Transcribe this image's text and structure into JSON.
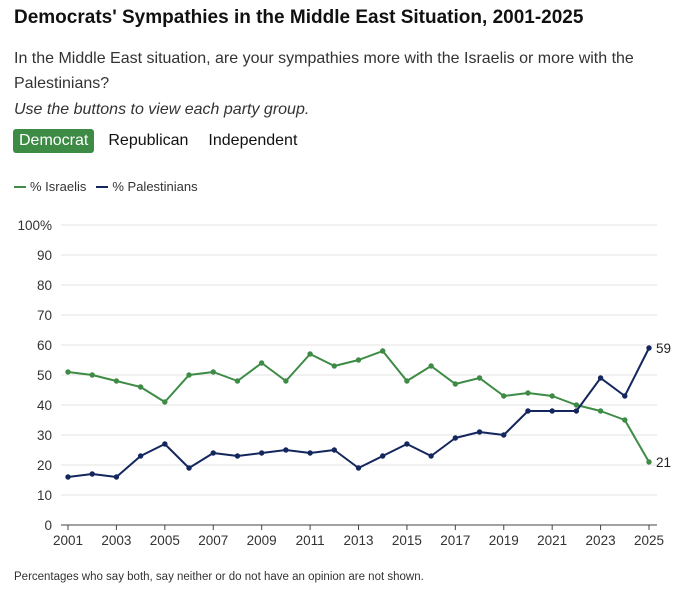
{
  "header": {
    "title": "Democrats' Sympathies in the Middle East Situation, 2001-2025",
    "subtitle": "In the Middle East situation, are your sympathies more with the Israelis or more with the Palestinians?",
    "instruction": "Use the buttons to view each party group."
  },
  "tabs": [
    {
      "label": "Democrat",
      "active": true
    },
    {
      "label": "Republican",
      "active": false
    },
    {
      "label": "Independent",
      "active": false
    }
  ],
  "legend": [
    {
      "label": "% Israelis",
      "color": "#3d8b45"
    },
    {
      "label": "% Palestinians",
      "color": "#14265e"
    }
  ],
  "footnote": "Percentages who say both, say neither or do not have an opinion are not shown.",
  "chart_data": {
    "type": "line",
    "x": [
      2001,
      2002,
      2003,
      2004,
      2005,
      2006,
      2007,
      2008,
      2009,
      2010,
      2011,
      2012,
      2013,
      2014,
      2015,
      2016,
      2017,
      2018,
      2019,
      2020,
      2021,
      2022,
      2023,
      2024,
      2025
    ],
    "x_ticks": [
      2001,
      2003,
      2005,
      2007,
      2009,
      2011,
      2013,
      2015,
      2017,
      2019,
      2021,
      2023,
      2025
    ],
    "y_ticks": [
      "0",
      "10",
      "20",
      "30",
      "40",
      "50",
      "60",
      "70",
      "80",
      "90",
      "100%"
    ],
    "ylim": [
      0,
      100
    ],
    "grid": true,
    "series": [
      {
        "name": "% Israelis",
        "color": "#3d8b45",
        "end_label": "21",
        "values": [
          51,
          50,
          48,
          46,
          41,
          50,
          51,
          48,
          54,
          48,
          57,
          53,
          55,
          58,
          48,
          53,
          47,
          49,
          43,
          44,
          43,
          40,
          38,
          35,
          21
        ]
      },
      {
        "name": "% Palestinians",
        "color": "#14265e",
        "end_label": "59",
        "values": [
          16,
          17,
          16,
          23,
          27,
          19,
          24,
          23,
          24,
          25,
          24,
          25,
          19,
          23,
          27,
          23,
          29,
          31,
          30,
          38,
          38,
          38,
          49,
          43,
          59
        ]
      }
    ]
  }
}
